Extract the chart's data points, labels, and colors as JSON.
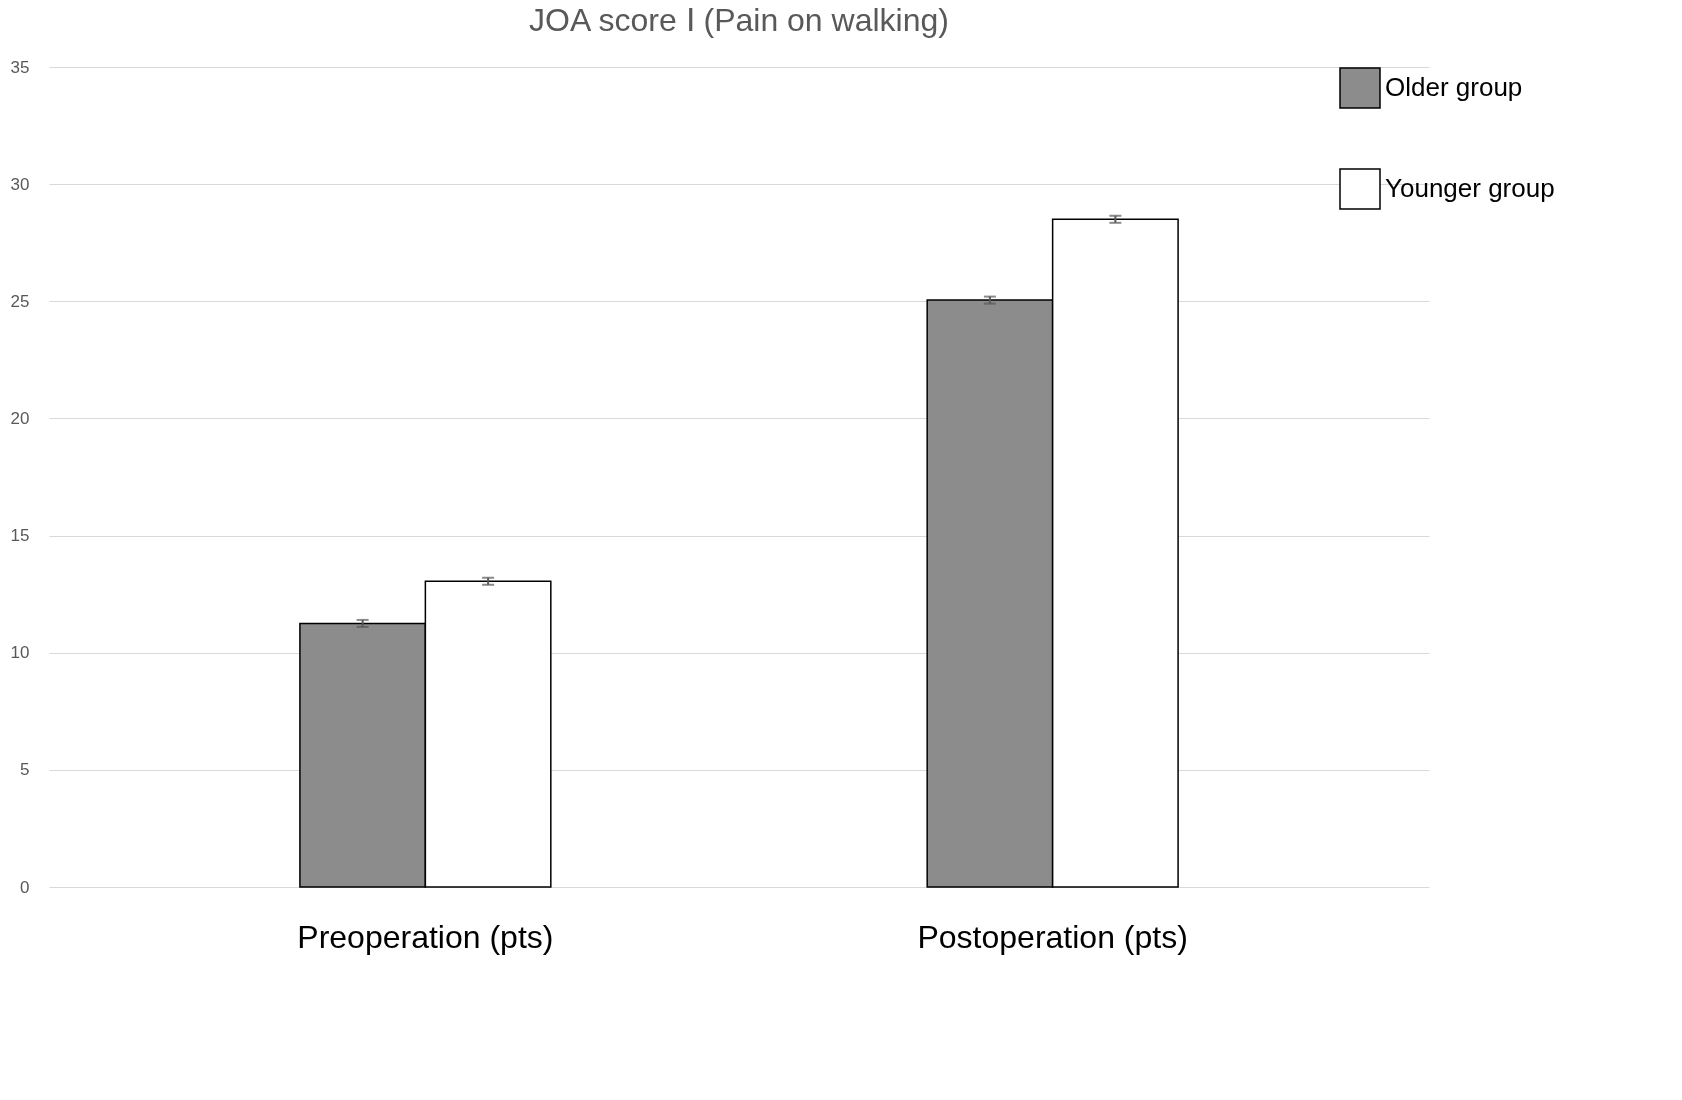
{
  "chart_data": {
    "type": "bar",
    "title": "JOA score Ⅰ (Pain on walking)",
    "categories": [
      "Preoperation (pts)",
      "Postoperation (pts)"
    ],
    "series": [
      {
        "name": "Older group",
        "color": "#8c8c8c",
        "values": [
          11.25,
          25.05
        ],
        "errors": [
          0.15,
          0.15
        ]
      },
      {
        "name": "Younger group",
        "color": "#ffffff",
        "values": [
          13.05,
          28.5
        ],
        "errors": [
          0.15,
          0.15
        ]
      }
    ],
    "ylim": [
      0,
      35
    ],
    "yticks": [
      0,
      5,
      10,
      15,
      20,
      25,
      30,
      35
    ],
    "grid": "y",
    "legend": "top right"
  }
}
